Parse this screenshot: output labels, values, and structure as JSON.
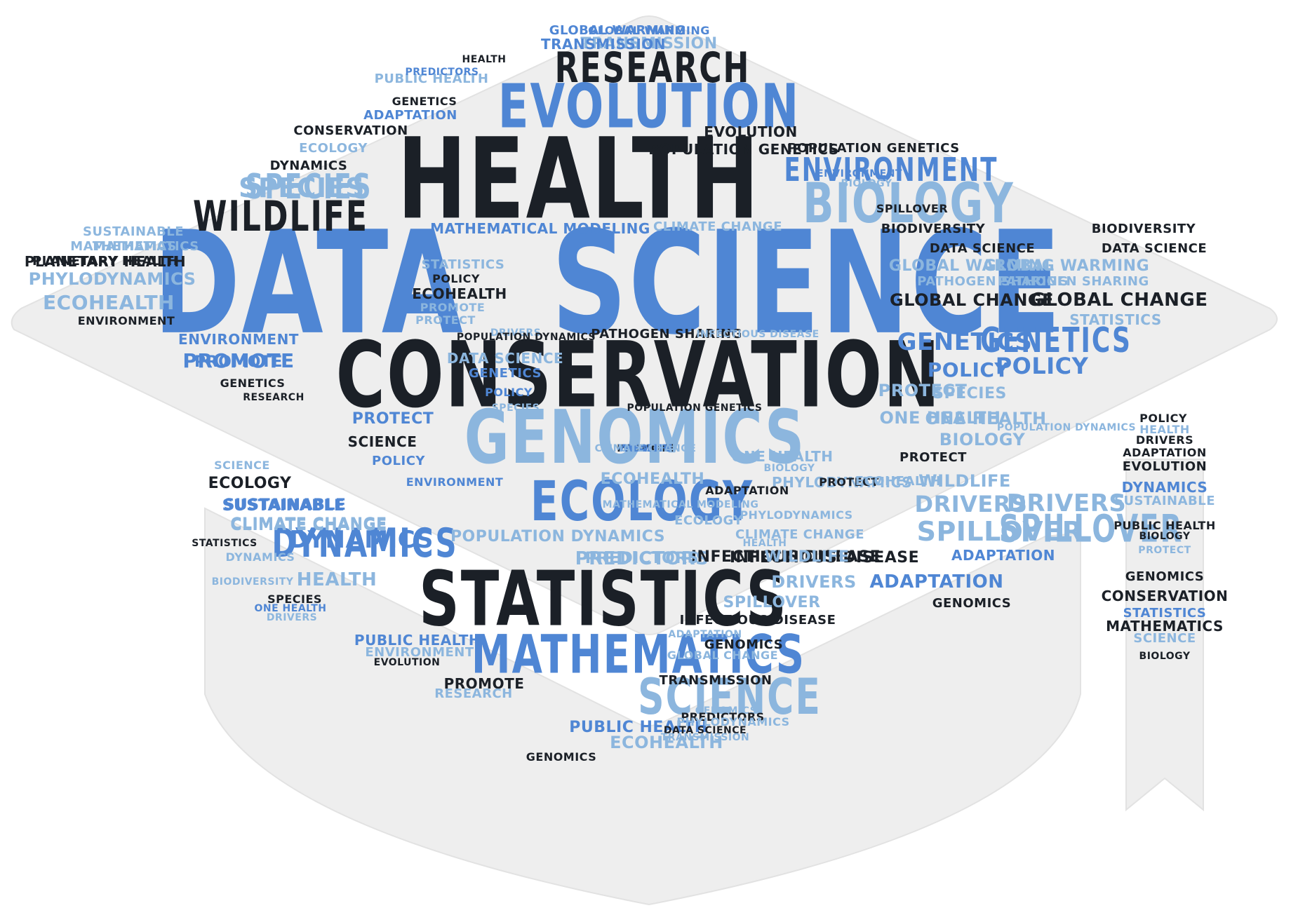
{
  "palette": {
    "dark": "#1b2027",
    "blue": "#4f86d4",
    "light": "#8cb6de",
    "cap_fill": "#eeeeee"
  },
  "words": [
    {
      "text": "DATA",
      "tone": "blue"
    },
    {
      "text": "SCIENCE",
      "tone": "blue"
    },
    {
      "text": "HEALTH",
      "tone": "dark"
    },
    {
      "text": "CONSERVATION",
      "tone": "dark"
    },
    {
      "text": "GENOMICS",
      "tone": "light"
    },
    {
      "text": "STATISTICS",
      "tone": "dark"
    },
    {
      "text": "ECOLOGY",
      "tone": "blue"
    },
    {
      "text": "MATHEMATICS",
      "tone": "blue"
    },
    {
      "text": "EVOLUTION",
      "tone": "blue"
    },
    {
      "text": "BIOLOGY",
      "tone": "light"
    },
    {
      "text": "RESEARCH",
      "tone": "dark"
    },
    {
      "text": "SCIENCE",
      "tone": "light"
    },
    {
      "text": "WILDLIFE",
      "tone": "dark"
    },
    {
      "text": "SPECIES",
      "tone": "light"
    },
    {
      "text": "ENVIRONMENT",
      "tone": "blue"
    },
    {
      "text": "GENETICS",
      "tone": "blue"
    },
    {
      "text": "DYNAMICS",
      "tone": "blue"
    },
    {
      "text": "SPILLOVER",
      "tone": "light"
    },
    {
      "text": "DRIVERS",
      "tone": "light"
    },
    {
      "text": "PREDICTORS",
      "tone": "light"
    },
    {
      "text": "POLICY",
      "tone": "blue"
    },
    {
      "text": "PROMOTE",
      "tone": "blue"
    },
    {
      "text": "PROTECT",
      "tone": "light"
    },
    {
      "text": "ADAPTATION",
      "tone": "blue"
    },
    {
      "text": "ONE HEALTH",
      "tone": "light"
    },
    {
      "text": "PUBLIC HEALTH",
      "tone": "blue"
    },
    {
      "text": "SUSTAINABLE",
      "tone": "blue"
    },
    {
      "text": "CLIMATE CHANGE",
      "tone": "light"
    },
    {
      "text": "ECOHEALTH",
      "tone": "light"
    },
    {
      "text": "PHYLODYNAMICS",
      "tone": "light"
    },
    {
      "text": "PLANETARY HEALTH",
      "tone": "dark"
    },
    {
      "text": "MATHEMATICS",
      "tone": "light"
    },
    {
      "text": "TRANSMISSION",
      "tone": "light"
    },
    {
      "text": "GLOBAL WARMING",
      "tone": "blue"
    },
    {
      "text": "POPULATION GENETICS",
      "tone": "dark"
    },
    {
      "text": "GLOBAL CHANGE",
      "tone": "dark"
    },
    {
      "text": "GLOBAL WARMING",
      "tone": "light"
    },
    {
      "text": "PATHOGEN SHARING",
      "tone": "light"
    },
    {
      "text": "DATA SCIENCE",
      "tone": "dark"
    },
    {
      "text": "BIODIVERSITY",
      "tone": "dark"
    },
    {
      "text": "MATHEMATICAL MODELING",
      "tone": "blue"
    },
    {
      "text": "CLIMATE CHANGE",
      "tone": "light"
    },
    {
      "text": "INFECTIOUS DISEASE",
      "tone": "dark"
    },
    {
      "text": "POPULATION DYNAMICS",
      "tone": "light"
    },
    {
      "text": "STATISTICS",
      "tone": "light"
    },
    {
      "text": "GENETICS",
      "tone": "blue"
    },
    {
      "text": "POLICY",
      "tone": "blue"
    },
    {
      "text": "SPECIES",
      "tone": "light"
    },
    {
      "text": "ONE HEALTH",
      "tone": "light"
    },
    {
      "text": "BIOLOGY",
      "tone": "light"
    },
    {
      "text": "PROTECT",
      "tone": "dark"
    },
    {
      "text": "WILDLIFE",
      "tone": "light"
    },
    {
      "text": "DRIVERS",
      "tone": "light"
    },
    {
      "text": "SPILLOVER",
      "tone": "light"
    },
    {
      "text": "ADAPTATION",
      "tone": "blue"
    },
    {
      "text": "GENOMICS",
      "tone": "dark"
    },
    {
      "text": "INFECTIOUS DISEASE",
      "tone": "dark"
    },
    {
      "text": "PREDICTORS",
      "tone": "light"
    },
    {
      "text": "POPULATION DYNAMICS",
      "tone": "light"
    },
    {
      "text": "HEALTH",
      "tone": "light"
    },
    {
      "text": "DYNAMICS",
      "tone": "blue"
    },
    {
      "text": "CLIMATE CHANGE",
      "tone": "light"
    },
    {
      "text": "SUSTAINABLE",
      "tone": "blue"
    },
    {
      "text": "ECOLOGY",
      "tone": "dark"
    },
    {
      "text": "SCIENCE",
      "tone": "light"
    },
    {
      "text": "ENVIRONMENT",
      "tone": "blue"
    },
    {
      "text": "POLICY",
      "tone": "blue"
    },
    {
      "text": "PROTECT",
      "tone": "blue"
    },
    {
      "text": "SCIENCE",
      "tone": "dark"
    },
    {
      "text": "GENETICS",
      "tone": "dark"
    },
    {
      "text": "RESEARCH",
      "tone": "dark"
    },
    {
      "text": "PROMOTE",
      "tone": "blue"
    },
    {
      "text": "ENVIRONMENT",
      "tone": "blue"
    },
    {
      "text": "ENVIRONMENT",
      "tone": "dark"
    },
    {
      "text": "ECOHEALTH",
      "tone": "light"
    },
    {
      "text": "PHYLODYNAMICS",
      "tone": "light"
    },
    {
      "text": "PLANETARY HEALTH",
      "tone": "dark"
    },
    {
      "text": "MATHEMATICS",
      "tone": "light"
    },
    {
      "text": "SUSTAINABLE",
      "tone": "light"
    },
    {
      "text": "SPECIES",
      "tone": "light"
    },
    {
      "text": "DYNAMICS",
      "tone": "dark"
    },
    {
      "text": "ECOLOGY",
      "tone": "light"
    },
    {
      "text": "CONSERVATION",
      "tone": "dark"
    },
    {
      "text": "ADAPTATION",
      "tone": "blue"
    },
    {
      "text": "GENETICS",
      "tone": "dark"
    },
    {
      "text": "PUBLIC HEALTH",
      "tone": "light"
    },
    {
      "text": "PREDICTORS",
      "tone": "blue"
    },
    {
      "text": "HEALTH",
      "tone": "dark"
    },
    {
      "text": "TRANSMISSION",
      "tone": "blue"
    },
    {
      "text": "GLOBAL WARMING",
      "tone": "blue"
    },
    {
      "text": "EVOLUTION",
      "tone": "dark"
    },
    {
      "text": "POPULATION GENETICS",
      "tone": "dark"
    },
    {
      "text": "ENVIRONMENT",
      "tone": "blue"
    },
    {
      "text": "BIOLOGY",
      "tone": "light"
    },
    {
      "text": "SPILLOVER",
      "tone": "dark"
    },
    {
      "text": "BIODIVERSITY",
      "tone": "dark"
    },
    {
      "text": "DATA SCIENCE",
      "tone": "dark"
    },
    {
      "text": "GLOBAL WARMING",
      "tone": "light"
    },
    {
      "text": "PATHOGEN SHARING",
      "tone": "light"
    },
    {
      "text": "GLOBAL CHANGE",
      "tone": "dark"
    },
    {
      "text": "STATISTICS",
      "tone": "light"
    },
    {
      "text": "POLICY",
      "tone": "dark"
    },
    {
      "text": "ECOHEALTH",
      "tone": "dark"
    },
    {
      "text": "PROMOTE",
      "tone": "light"
    },
    {
      "text": "PROTECT",
      "tone": "light"
    },
    {
      "text": "DRIVERS",
      "tone": "light"
    },
    {
      "text": "POPULATION DYNAMICS",
      "tone": "dark"
    },
    {
      "text": "PATHOGEN SHARING",
      "tone": "dark"
    },
    {
      "text": "INFECTIOUS DISEASE",
      "tone": "light"
    },
    {
      "text": "DATA SCIENCE",
      "tone": "light"
    },
    {
      "text": "GENETICS",
      "tone": "blue"
    },
    {
      "text": "POLICY",
      "tone": "blue"
    },
    {
      "text": "SPECIES",
      "tone": "light"
    },
    {
      "text": "POPULATION GENETICS",
      "tone": "dark"
    },
    {
      "text": "MATHEMATICAL MODELING",
      "tone": "light"
    },
    {
      "text": "ONE HEALTH",
      "tone": "light"
    },
    {
      "text": "BIOLOGY",
      "tone": "light"
    },
    {
      "text": "PROTECT",
      "tone": "dark"
    },
    {
      "text": "ADAPTATION",
      "tone": "dark"
    },
    {
      "text": "PHYLODYNAMICS",
      "tone": "light"
    },
    {
      "text": "CLIMATE CHANGE",
      "tone": "light"
    },
    {
      "text": "ECOLOGY",
      "tone": "light"
    },
    {
      "text": "ECOHEALTH",
      "tone": "light"
    },
    {
      "text": "HEALTH",
      "tone": "light"
    },
    {
      "text": "WILDLIFE",
      "tone": "light"
    },
    {
      "text": "DRIVERS",
      "tone": "light"
    },
    {
      "text": "SPILLOVER",
      "tone": "light"
    },
    {
      "text": "INFECTIOUS DISEASE",
      "tone": "dark"
    },
    {
      "text": "ADAPTATION",
      "tone": "light"
    },
    {
      "text": "GENOMICS",
      "tone": "dark"
    },
    {
      "text": "GLOBAL CHANGE",
      "tone": "light"
    },
    {
      "text": "TRANSMISSION",
      "tone": "dark"
    },
    {
      "text": "GENOMICS",
      "tone": "light"
    },
    {
      "text": "DATA SCIENCE",
      "tone": "dark"
    },
    {
      "text": "PREDICTORS",
      "tone": "dark"
    },
    {
      "text": "PHYLODYNAMICS",
      "tone": "light"
    },
    {
      "text": "TRANSMISSION",
      "tone": "light"
    },
    {
      "text": "ECOHEALTH",
      "tone": "light"
    },
    {
      "text": "GENOMICS",
      "tone": "dark"
    },
    {
      "text": "PROMOTE",
      "tone": "dark"
    },
    {
      "text": "RESEARCH",
      "tone": "light"
    },
    {
      "text": "PUBLIC HEALTH",
      "tone": "blue"
    },
    {
      "text": "ENVIRONMENT",
      "tone": "light"
    },
    {
      "text": "EVOLUTION",
      "tone": "dark"
    },
    {
      "text": "SPECIES",
      "tone": "dark"
    },
    {
      "text": "ONE HEALTH",
      "tone": "blue"
    },
    {
      "text": "DRIVERS",
      "tone": "light"
    },
    {
      "text": "DYNAMICS",
      "tone": "light"
    },
    {
      "text": "STATISTICS",
      "tone": "dark"
    },
    {
      "text": "BIODIVERSITY",
      "tone": "light"
    },
    {
      "text": "POLICY",
      "tone": "dark"
    },
    {
      "text": "HEALTH",
      "tone": "light"
    },
    {
      "text": "DRIVERS",
      "tone": "dark"
    },
    {
      "text": "ADAPTATION",
      "tone": "dark"
    },
    {
      "text": "EVOLUTION",
      "tone": "dark"
    },
    {
      "text": "DYNAMICS",
      "tone": "blue"
    },
    {
      "text": "SUSTAINABLE",
      "tone": "light"
    },
    {
      "text": "PUBLIC HEALTH",
      "tone": "dark"
    },
    {
      "text": "BIOLOGY",
      "tone": "dark"
    },
    {
      "text": "PROTECT",
      "tone": "light"
    },
    {
      "text": "GENOMICS",
      "tone": "dark"
    },
    {
      "text": "CONSERVATION",
      "tone": "dark"
    },
    {
      "text": "STATISTICS",
      "tone": "blue"
    },
    {
      "text": "MATHEMATICS",
      "tone": "dark"
    },
    {
      "text": "SCIENCE",
      "tone": "light"
    },
    {
      "text": "BIOLOGY",
      "tone": "dark"
    },
    {
      "text": "SPECIES",
      "tone": "light"
    },
    {
      "text": "PROMOTE",
      "tone": "dark"
    },
    {
      "text": "HEALTH",
      "tone": "blue"
    },
    {
      "text": "WILDLIFE",
      "tone": "blue"
    },
    {
      "text": "CLIMATE CHANGE",
      "tone": "light"
    }
  ]
}
